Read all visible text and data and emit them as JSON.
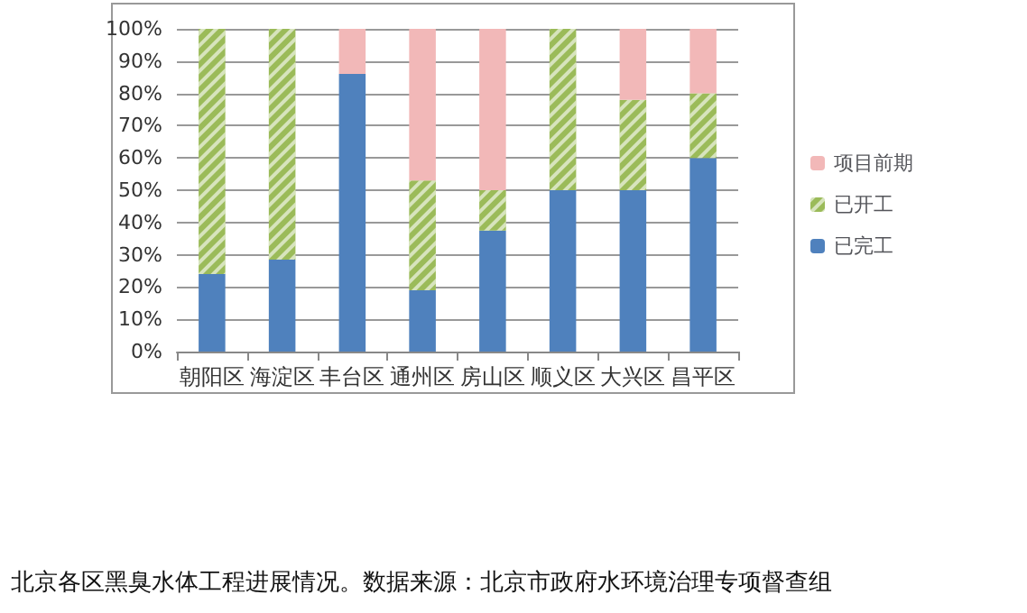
{
  "chart_data": {
    "type": "bar",
    "stacked": true,
    "categories": [
      "朝阳区",
      "海淀区",
      "丰台区",
      "通州区",
      "房山区",
      "顺义区",
      "大兴区",
      "昌平区"
    ],
    "series": [
      {
        "name": "已完工",
        "color": "#4f81bd",
        "values": [
          24,
          28.5,
          86,
          19,
          37.5,
          50,
          50,
          60
        ]
      },
      {
        "name": "已开工",
        "color": "#9bbb59",
        "values": [
          76,
          71.5,
          0,
          34,
          12.5,
          50,
          28,
          20
        ]
      },
      {
        "name": "项目前期",
        "color": "#f2b8b8",
        "values": [
          0,
          0,
          14,
          47,
          50,
          0,
          22,
          20
        ]
      }
    ],
    "ylim": [
      0,
      100
    ],
    "yticks": [
      {
        "value": 0,
        "label": "0%"
      },
      {
        "value": 10,
        "label": "10%"
      },
      {
        "value": 20,
        "label": "20%"
      },
      {
        "value": 30,
        "label": "30%"
      },
      {
        "value": 40,
        "label": "40%"
      },
      {
        "value": 50,
        "label": "50%"
      },
      {
        "value": 60,
        "label": "60%"
      },
      {
        "value": 70,
        "label": "70%"
      },
      {
        "value": 80,
        "label": "80%"
      },
      {
        "value": 90,
        "label": "90%"
      },
      {
        "value": 100,
        "label": "100%"
      }
    ],
    "grid": "y",
    "legend": "right",
    "annotations": [
      "北京各区黑臭水体工程进展情况。数据来源：北京市政府水环境治理专项督查组"
    ]
  }
}
